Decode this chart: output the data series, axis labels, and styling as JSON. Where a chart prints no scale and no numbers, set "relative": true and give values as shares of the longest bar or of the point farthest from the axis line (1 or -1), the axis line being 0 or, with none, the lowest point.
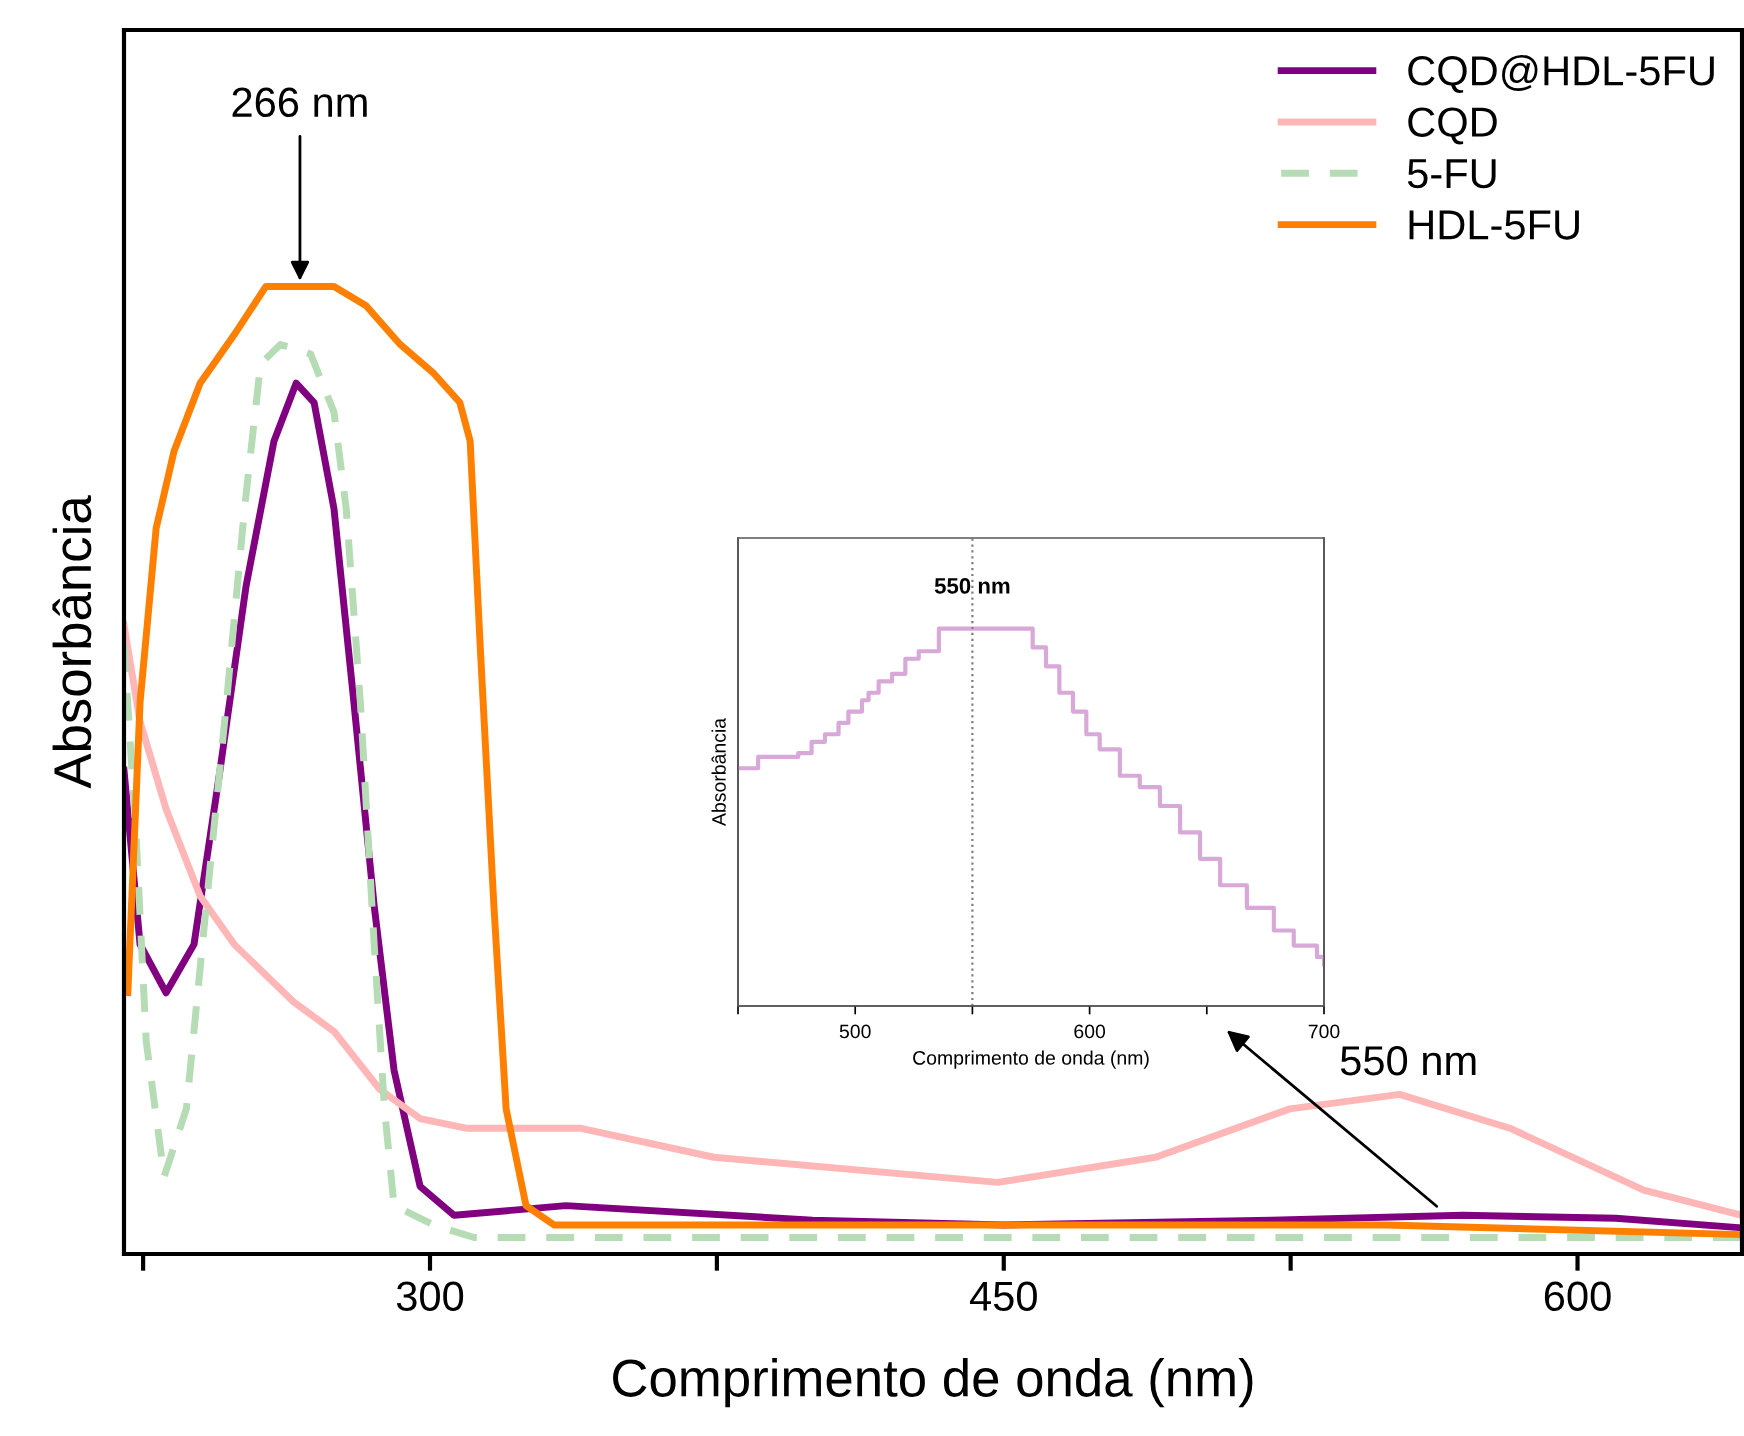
{
  "chart_data": [
    {
      "type": "line",
      "relative": true,
      "xlabel": "Comprimento de onda (nm)",
      "ylabel": "Absorbância",
      "xlim": [
        220,
        643
      ],
      "xticks": [
        {
          "value": 225,
          "label": null
        },
        300,
        {
          "value": 375,
          "label": null
        },
        450,
        {
          "value": 525,
          "label": null
        },
        600
      ],
      "legend": "top right",
      "series": [
        {
          "name": "CQD@HDL-5FU",
          "color": "#800080",
          "line_style": "solid",
          "x": [
            220,
            224.2,
            231,
            238.3,
            245.1,
            251.9,
            259.2,
            265,
            269.7,
            274.9,
            280.1,
            285.4,
            290.6,
            297.4,
            306.3,
            335.5,
            400,
            450,
            520,
            570,
            610,
            643
          ],
          "values": [
            0.5,
            0.32,
            0.27,
            0.32,
            0.5,
            0.69,
            0.84,
            0.9,
            0.88,
            0.77,
            0.57,
            0.36,
            0.19,
            0.07,
            0.04,
            0.05,
            0.035,
            0.03,
            0.035,
            0.04,
            0.037,
            0.027
          ]
        },
        {
          "name": "CQD",
          "color": "#ffb6b6",
          "line_style": "solid",
          "x": [
            220,
            224.2,
            231,
            239.9,
            248.8,
            264.5,
            274.9,
            286.9,
            297.4,
            309.4,
            335.5,
            339.2,
            374.2,
            448.4,
            489.7,
            524.8,
            553.5,
            582.3,
            617.3,
            643
          ],
          "values": [
            0.65,
            0.55,
            0.46,
            0.37,
            0.32,
            0.26,
            0.23,
            0.17,
            0.14,
            0.13,
            0.13,
            0.13,
            0.1,
            0.074,
            0.1,
            0.15,
            0.165,
            0.13,
            0.066,
            0.04
          ]
        },
        {
          "name": "5-FU",
          "color": "#b5dcb5",
          "line_style": "dashed",
          "x": [
            220,
            223.2,
            225.8,
            230.5,
            236.3,
            241.5,
            246.8,
            251.5,
            255.7,
            260.9,
            268.8,
            274.9,
            278.1,
            281.8,
            285.4,
            288.1,
            290.6,
            301,
            311.5,
            400,
            500,
            643
          ],
          "values": [
            0.63,
            0.43,
            0.22,
            0.08,
            0.15,
            0.36,
            0.57,
            0.77,
            0.92,
            0.94,
            0.93,
            0.87,
            0.77,
            0.57,
            0.32,
            0.15,
            0.05,
            0.03,
            0.017,
            0.017,
            0.017,
            0.017
          ]
        },
        {
          "name": "HDL-5FU",
          "color": "#ff8000",
          "line_style": "solid",
          "x": [
            221,
            224.2,
            228.4,
            233.1,
            239.9,
            248.8,
            257.1,
            266,
            274.9,
            283.3,
            292.2,
            301,
            307.8,
            310.5,
            313.1,
            316.7,
            319.9,
            325.1,
            332.4,
            350,
            450,
            550,
            643
          ],
          "values": [
            0.27,
            0.57,
            0.75,
            0.83,
            0.9,
            0.95,
            1.0,
            1.0,
            1.0,
            0.98,
            0.94,
            0.91,
            0.88,
            0.84,
            0.63,
            0.36,
            0.15,
            0.05,
            0.03,
            0.03,
            0.03,
            0.03,
            0.02
          ]
        }
      ],
      "annotations": [
        {
          "text": "266 nm",
          "x": 266,
          "y": 1.0
        },
        "550 nm"
      ]
    },
    {
      "type": "step",
      "relative": true,
      "xlabel": "Comprimento de onda (nm)",
      "ylabel": "Absorbância",
      "xlim": [
        450,
        700
      ],
      "xticks": [
        {
          "value": 450,
          "label": null
        },
        500,
        {
          "value": 550,
          "label": null
        },
        600,
        {
          "value": 650,
          "label": null
        },
        700
      ],
      "series": [
        {
          "color": "#d8a8d8",
          "x": [
            450,
            458.6,
            475.7,
            481.4,
            487.1,
            492.9,
            497.1,
            502.9,
            505.7,
            510,
            515.7,
            521.4,
            527.1,
            535.7,
            571.4,
            575.7,
            581.4,
            587.1,
            592.9,
            598.6,
            604.3,
            612.9,
            621.4,
            630,
            638.6,
            647.1,
            655.7,
            667.1,
            678.6,
            687.1,
            697,
            700
          ],
          "values": [
            0.63,
            0.66,
            0.67,
            0.7,
            0.72,
            0.75,
            0.78,
            0.81,
            0.83,
            0.86,
            0.88,
            0.92,
            0.94,
            1.0,
            1.0,
            0.95,
            0.9,
            0.83,
            0.78,
            0.72,
            0.68,
            0.61,
            0.58,
            0.53,
            0.46,
            0.39,
            0.32,
            0.26,
            0.2,
            0.16,
            0.13,
            0.11
          ]
        }
      ],
      "ref_lines": [
        {
          "axis": "x",
          "value": 550,
          "label": "550 nm",
          "color": "#808080",
          "line_style": "dotted"
        }
      ]
    }
  ]
}
